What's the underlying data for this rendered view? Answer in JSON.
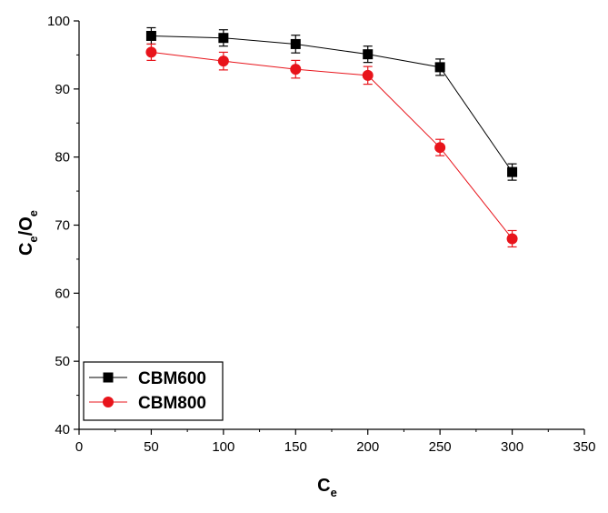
{
  "chart_data": {
    "type": "line",
    "xlabel": {
      "main": "C",
      "sub": "e"
    },
    "ylabel": {
      "parts": [
        {
          "text": "C"
        },
        {
          "text": "e",
          "sub": true
        },
        {
          "text": "/O"
        },
        {
          "text": "e",
          "sub": true
        }
      ]
    },
    "xlim": [
      0,
      350
    ],
    "ylim": [
      40,
      100
    ],
    "x_ticks": [
      0,
      50,
      100,
      150,
      200,
      250,
      300,
      350
    ],
    "y_ticks": [
      40,
      50,
      60,
      70,
      80,
      90,
      100
    ],
    "grid": false,
    "legend_position": "bottom-left",
    "series": [
      {
        "name": "CBM600",
        "color": "#000000",
        "marker": "square",
        "x": [
          50,
          100,
          150,
          200,
          250,
          300
        ],
        "y": [
          97.8,
          97.5,
          96.6,
          95.1,
          93.2,
          77.8
        ],
        "error": [
          1.2,
          1.2,
          1.3,
          1.2,
          1.2,
          1.2
        ]
      },
      {
        "name": "CBM800",
        "color": "#e8141b",
        "marker": "circle",
        "x": [
          50,
          100,
          150,
          200,
          250,
          300
        ],
        "y": [
          95.4,
          94.1,
          92.9,
          92.0,
          81.4,
          68.0
        ],
        "error": [
          1.2,
          1.3,
          1.3,
          1.3,
          1.2,
          1.2
        ]
      }
    ]
  }
}
